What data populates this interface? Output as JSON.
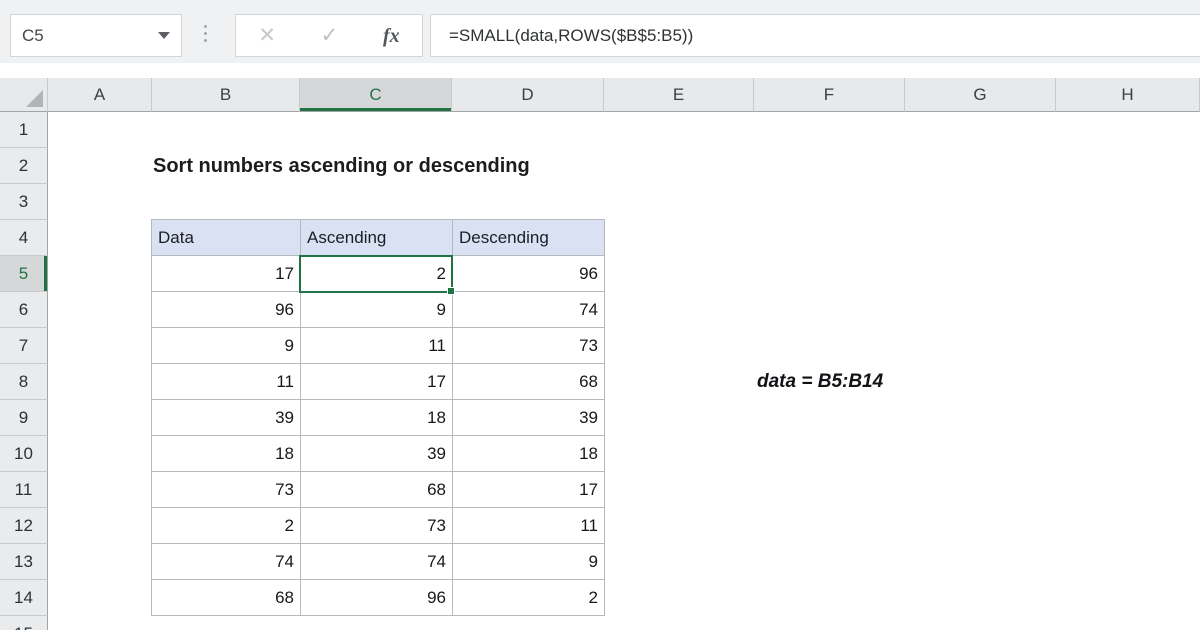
{
  "formula_bar": {
    "name_box_value": "C5",
    "cancel_icon": "✕",
    "enter_icon": "✓",
    "fx_label": "fx",
    "formula": "=SMALL(data,ROWS($B$5:B5))"
  },
  "sheet": {
    "selected_cell": "C5",
    "columns": [
      "A",
      "B",
      "C",
      "D",
      "E",
      "F",
      "G",
      "H"
    ],
    "rows": [
      "1",
      "2",
      "3",
      "4",
      "5",
      "6",
      "7",
      "8",
      "9",
      "10",
      "11",
      "12",
      "13",
      "14",
      "15"
    ],
    "title": "Sort numbers ascending or descending",
    "annotation": "data = B5:B14"
  },
  "table": {
    "headers": [
      "Data",
      "Ascending",
      "Descending"
    ],
    "rows": [
      [
        "17",
        "2",
        "96"
      ],
      [
        "96",
        "9",
        "74"
      ],
      [
        "9",
        "11",
        "73"
      ],
      [
        "11",
        "17",
        "68"
      ],
      [
        "39",
        "18",
        "39"
      ],
      [
        "18",
        "39",
        "18"
      ],
      [
        "73",
        "68",
        "17"
      ],
      [
        "2",
        "73",
        "11"
      ],
      [
        "74",
        "74",
        "9"
      ],
      [
        "68",
        "96",
        "2"
      ]
    ]
  },
  "colors": {
    "accent_green": "#217346",
    "table_header_fill": "#D9E1F2",
    "header_fill": "#E8E9EA",
    "selected_header_fill": "#D6D7D8"
  }
}
